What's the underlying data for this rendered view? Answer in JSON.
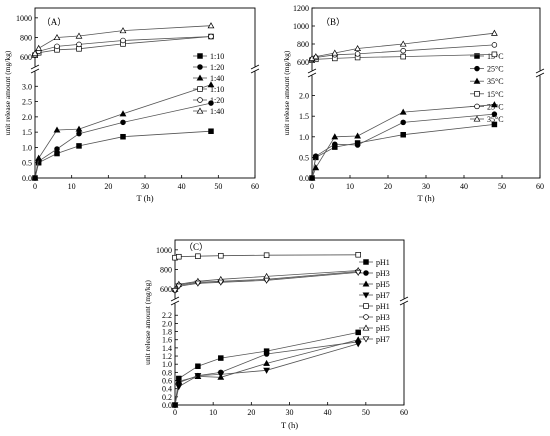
{
  "chart_data": [
    {
      "type": "line",
      "panel_label": "（A）",
      "xlabel": "T (h)",
      "ylabel": "unit release amount (mg/kg)",
      "xlim": [
        0,
        60
      ],
      "xticks": [
        0,
        10,
        20,
        30,
        40,
        50,
        60
      ],
      "ylim_lower": [
        0,
        3.5
      ],
      "yticks_lower": [
        0.0,
        0.5,
        1.0,
        1.5,
        2.0,
        2.5,
        3.0
      ],
      "ylim_upper": [
        500,
        1100
      ],
      "yticks_upper": [
        600,
        800,
        1000
      ],
      "legend_position": "right",
      "series": [
        {
          "name": "1:10",
          "marker": "square-filled",
          "axis": "lower",
          "x": [
            0,
            1,
            6,
            12,
            24,
            48
          ],
          "y": [
            0.0,
            0.5,
            0.8,
            1.05,
            1.35,
            1.53
          ]
        },
        {
          "name": "1:20",
          "marker": "circle-filled",
          "axis": "lower",
          "x": [
            0,
            1,
            6,
            12,
            24,
            48
          ],
          "y": [
            0.0,
            0.55,
            0.95,
            1.45,
            1.82,
            2.45
          ]
        },
        {
          "name": "1:40",
          "marker": "triangle-filled",
          "axis": "lower",
          "x": [
            0,
            1,
            6,
            12,
            24,
            48
          ],
          "y": [
            0.0,
            0.65,
            1.57,
            1.6,
            2.1,
            3.05
          ]
        },
        {
          "name": "1:10",
          "marker": "square-open",
          "axis": "upper",
          "x": [
            0,
            1,
            6,
            12,
            24,
            48
          ],
          "y": [
            620,
            645,
            675,
            685,
            735,
            810
          ]
        },
        {
          "name": "1:20",
          "marker": "circle-open",
          "axis": "upper",
          "x": [
            0,
            1,
            6,
            12,
            24,
            48
          ],
          "y": [
            625,
            660,
            710,
            730,
            770,
            810
          ]
        },
        {
          "name": "1:40",
          "marker": "triangle-open",
          "axis": "upper",
          "x": [
            0,
            1,
            6,
            12,
            24,
            48
          ],
          "y": [
            640,
            690,
            800,
            815,
            870,
            920
          ]
        }
      ]
    },
    {
      "type": "line",
      "panel_label": "（B）",
      "xlabel": "T (h)",
      "ylabel": "unit release amount (mg/kg)",
      "xlim": [
        0,
        60
      ],
      "xticks": [
        0,
        10,
        20,
        30,
        40,
        50,
        60
      ],
      "ylim_lower": [
        0,
        2.5
      ],
      "yticks_lower": [
        0.0,
        0.5,
        1.0,
        1.5,
        2.0
      ],
      "ylim_upper": [
        500,
        1200
      ],
      "yticks_upper": [
        600,
        800,
        1000,
        1200
      ],
      "legend_position": "right",
      "series": [
        {
          "name": "15°C",
          "marker": "square-filled",
          "axis": "lower",
          "x": [
            0,
            1,
            6,
            12,
            24,
            48
          ],
          "y": [
            0.0,
            0.5,
            0.75,
            0.85,
            1.05,
            1.3
          ]
        },
        {
          "name": "25°C",
          "marker": "circle-filled",
          "axis": "lower",
          "x": [
            0,
            1,
            6,
            12,
            24,
            48
          ],
          "y": [
            0.0,
            0.53,
            0.82,
            0.8,
            1.35,
            1.55
          ]
        },
        {
          "name": "35°C",
          "marker": "triangle-filled",
          "axis": "lower",
          "x": [
            0,
            1,
            6,
            12,
            24,
            48
          ],
          "y": [
            0.0,
            0.25,
            1.0,
            1.02,
            1.6,
            1.78
          ]
        },
        {
          "name": "15°C",
          "marker": "square-open",
          "axis": "upper",
          "x": [
            0,
            1,
            6,
            12,
            24,
            48
          ],
          "y": [
            620,
            630,
            640,
            650,
            660,
            685
          ]
        },
        {
          "name": "25°C",
          "marker": "circle-open",
          "axis": "upper",
          "x": [
            0,
            1,
            6,
            12,
            24,
            48
          ],
          "y": [
            630,
            650,
            680,
            690,
            725,
            790
          ]
        },
        {
          "name": "35°C",
          "marker": "triangle-open",
          "axis": "upper",
          "x": [
            0,
            1,
            6,
            12,
            24,
            48
          ],
          "y": [
            640,
            660,
            700,
            750,
            800,
            920
          ]
        }
      ]
    },
    {
      "type": "line",
      "panel_label": "（C）",
      "xlabel": "T (h)",
      "ylabel": "unit release amount (mg/kg)",
      "xlim": [
        0,
        60
      ],
      "xticks": [
        0,
        10,
        20,
        30,
        40,
        50,
        60
      ],
      "ylim_lower": [
        0,
        2.5
      ],
      "yticks_lower": [
        0.0,
        0.2,
        0.4,
        0.6,
        0.8,
        1.0,
        1.2,
        1.4,
        1.6,
        1.8,
        2.0,
        2.2
      ],
      "ylim_upper": [
        500,
        1100
      ],
      "yticks_upper": [
        600,
        800,
        1000
      ],
      "legend_position": "right",
      "series": [
        {
          "name": "pH1",
          "marker": "square-filled",
          "axis": "lower",
          "x": [
            0,
            1,
            6,
            12,
            24,
            48
          ],
          "y": [
            0.0,
            0.65,
            0.95,
            1.15,
            1.32,
            1.78
          ]
        },
        {
          "name": "pH3",
          "marker": "circle-filled",
          "axis": "lower",
          "x": [
            0,
            1,
            6,
            12,
            24,
            48
          ],
          "y": [
            0.0,
            0.55,
            0.72,
            0.8,
            1.25,
            1.55
          ]
        },
        {
          "name": "pH5",
          "marker": "triangle-filled",
          "axis": "lower",
          "x": [
            0,
            1,
            6,
            12,
            24,
            48
          ],
          "y": [
            0.0,
            0.58,
            0.7,
            0.68,
            1.02,
            1.6
          ]
        },
        {
          "name": "pH7",
          "marker": "triangle-down-filled",
          "axis": "lower",
          "x": [
            0,
            1,
            6,
            12,
            24,
            48
          ],
          "y": [
            0.0,
            0.45,
            0.72,
            0.75,
            0.85,
            1.5
          ]
        },
        {
          "name": "pH1",
          "marker": "square-open",
          "axis": "upper",
          "x": [
            0,
            1,
            6,
            12,
            24,
            48
          ],
          "y": [
            920,
            930,
            935,
            940,
            945,
            950
          ]
        },
        {
          "name": "pH3",
          "marker": "circle-open",
          "axis": "upper",
          "x": [
            0,
            1,
            6,
            12,
            24,
            48
          ],
          "y": [
            590,
            640,
            670,
            680,
            700,
            780
          ]
        },
        {
          "name": "pH5",
          "marker": "triangle-open",
          "axis": "upper",
          "x": [
            0,
            1,
            6,
            12,
            24,
            48
          ],
          "y": [
            600,
            650,
            680,
            700,
            730,
            790
          ]
        },
        {
          "name": "pH7",
          "marker": "triangle-down-open",
          "axis": "upper",
          "x": [
            0,
            1,
            6,
            12,
            24,
            48
          ],
          "y": [
            585,
            630,
            660,
            670,
            690,
            770
          ]
        }
      ]
    }
  ]
}
